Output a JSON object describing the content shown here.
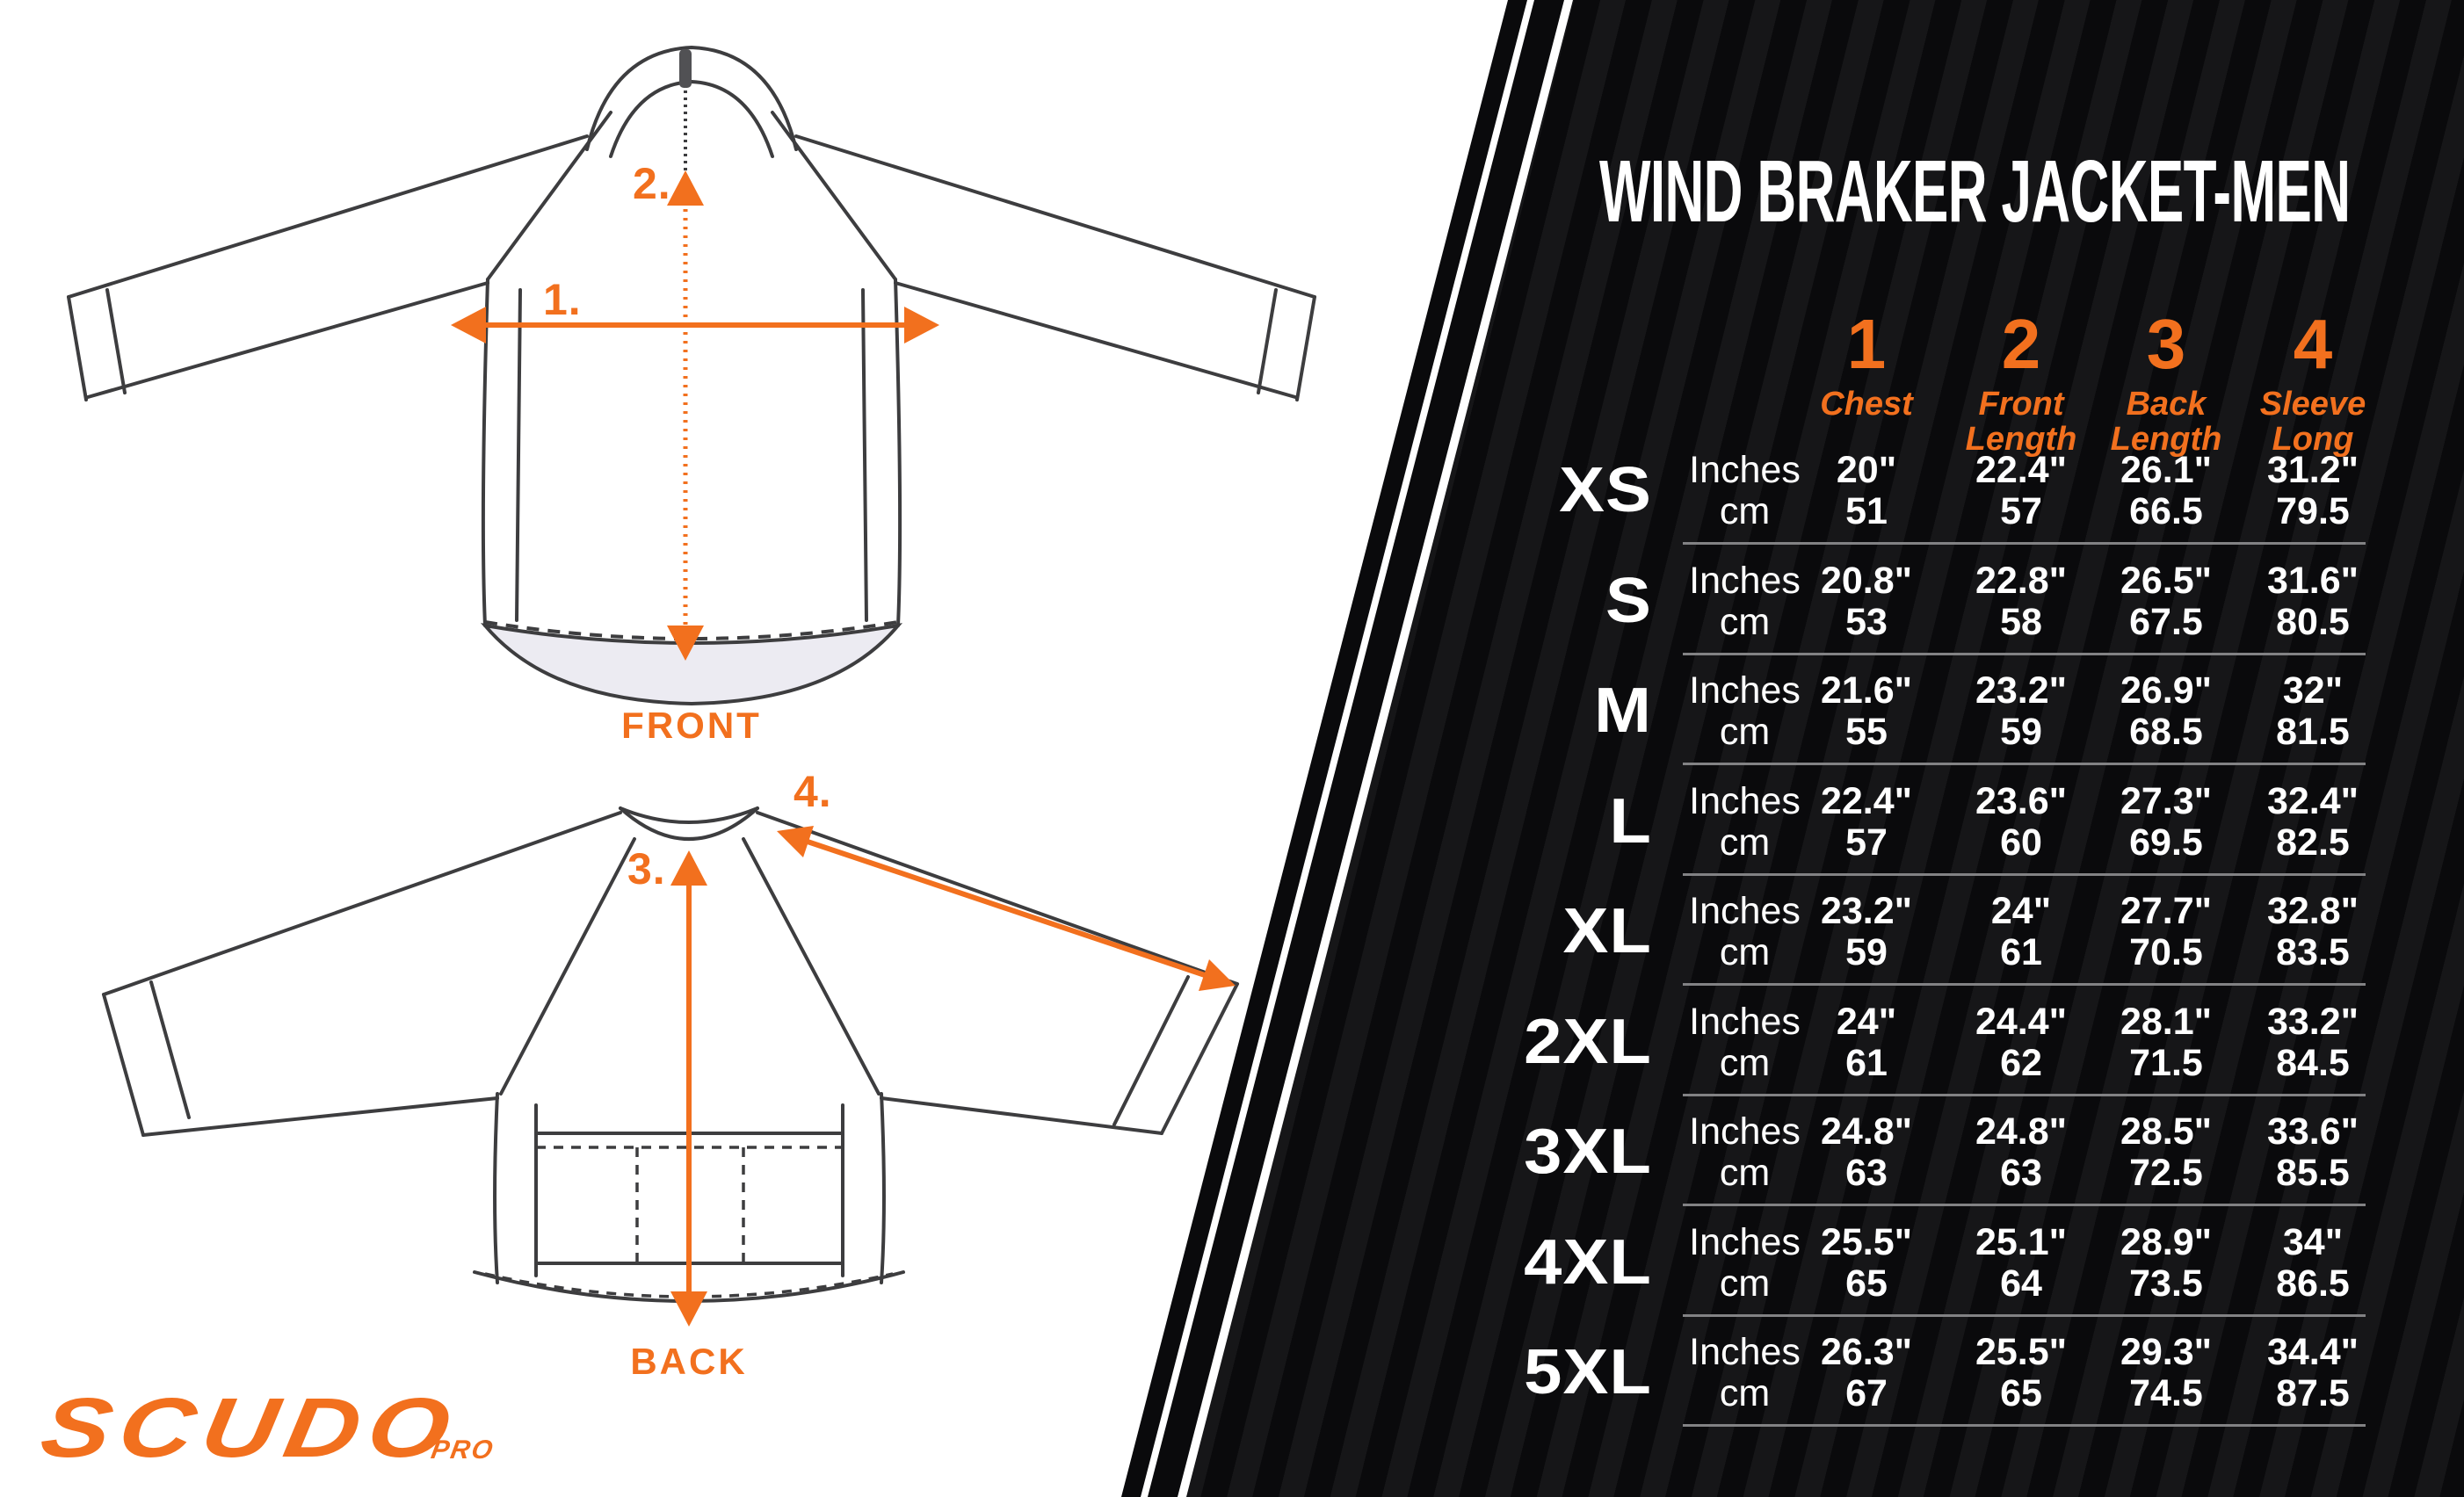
{
  "title": "WIND BRAKER JACKET-MEN",
  "brand": {
    "name": "SCUDO",
    "suffix": "PRO"
  },
  "diagram": {
    "front_label": "FRONT",
    "back_label": "BACK",
    "measures": [
      {
        "label": "1."
      },
      {
        "label": "2."
      },
      {
        "label": "3."
      },
      {
        "label": "4."
      }
    ]
  },
  "table": {
    "unit_rows": [
      "Inches",
      "cm"
    ],
    "columns": [
      {
        "num": "1",
        "label": "Chest"
      },
      {
        "num": "2",
        "label": "Front\nLength"
      },
      {
        "num": "3",
        "label": "Back\nLength"
      },
      {
        "num": "4",
        "label": "Sleeve\nLong"
      }
    ],
    "rows": [
      {
        "size": "XS",
        "inches": [
          "20\"",
          "22.4\"",
          "26.1\"",
          "31.2\""
        ],
        "cm": [
          "51",
          "57",
          "66.5",
          "79.5"
        ]
      },
      {
        "size": "S",
        "inches": [
          "20.8\"",
          "22.8\"",
          "26.5\"",
          "31.6\""
        ],
        "cm": [
          "53",
          "58",
          "67.5",
          "80.5"
        ]
      },
      {
        "size": "M",
        "inches": [
          "21.6\"",
          "23.2\"",
          "26.9\"",
          "32\""
        ],
        "cm": [
          "55",
          "59",
          "68.5",
          "81.5"
        ]
      },
      {
        "size": "L",
        "inches": [
          "22.4\"",
          "23.6\"",
          "27.3\"",
          "32.4\""
        ],
        "cm": [
          "57",
          "60",
          "69.5",
          "82.5"
        ]
      },
      {
        "size": "XL",
        "inches": [
          "23.2\"",
          "24\"",
          "27.7\"",
          "32.8\""
        ],
        "cm": [
          "59",
          "61",
          "70.5",
          "83.5"
        ]
      },
      {
        "size": "2XL",
        "inches": [
          "24\"",
          "24.4\"",
          "28.1\"",
          "33.2\""
        ],
        "cm": [
          "61",
          "62",
          "71.5",
          "84.5"
        ]
      },
      {
        "size": "3XL",
        "inches": [
          "24.8\"",
          "24.8\"",
          "28.5\"",
          "33.6\""
        ],
        "cm": [
          "63",
          "63",
          "72.5",
          "85.5"
        ]
      },
      {
        "size": "4XL",
        "inches": [
          "25.5\"",
          "25.1\"",
          "28.9\"",
          "34\""
        ],
        "cm": [
          "65",
          "64",
          "73.5",
          "86.5"
        ]
      },
      {
        "size": "5XL",
        "inches": [
          "26.3\"",
          "25.5\"",
          "29.3\"",
          "34.4\""
        ],
        "cm": [
          "67",
          "65",
          "74.5",
          "87.5"
        ]
      }
    ]
  },
  "colors": {
    "accent": "#F2701E",
    "panel_black": "#0A0A0C",
    "divider_gray": "#828284",
    "line_gray": "#3D3D3F"
  }
}
